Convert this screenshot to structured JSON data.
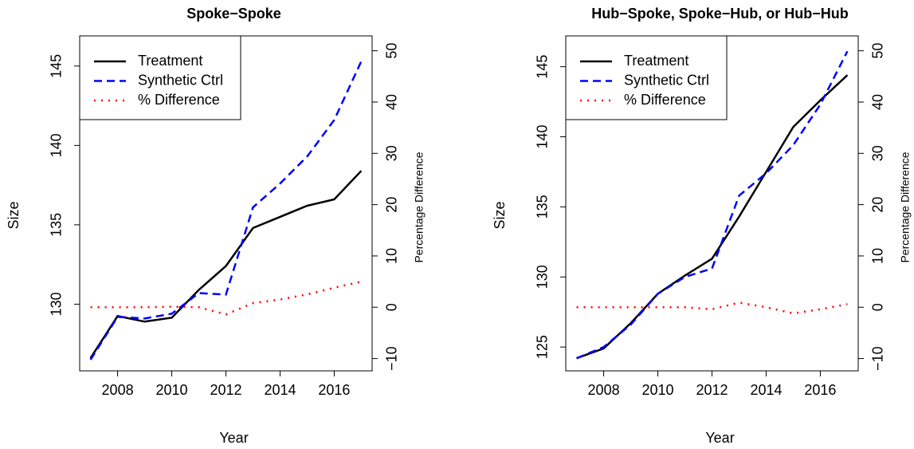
{
  "chart_data": [
    {
      "type": "line",
      "title": "Spoke−Spoke",
      "xlabel": "Year",
      "ylabel": "Size",
      "y2label": "Percentage Difference",
      "x": [
        2007,
        2008,
        2009,
        2010,
        2011,
        2012,
        2013,
        2014,
        2015,
        2016,
        2017
      ],
      "series": [
        {
          "name": "Treatment",
          "color": "#000000",
          "linestyle": "solid",
          "values": [
            126.6,
            129.25,
            128.9,
            129.15,
            130.9,
            132.4,
            134.8,
            135.5,
            136.2,
            136.6,
            138.4
          ]
        },
        {
          "name": "Synthetic Ctrl",
          "color": "#0000ff",
          "linestyle": "dashed",
          "values": [
            126.5,
            129.2,
            129.1,
            129.4,
            130.7,
            130.6,
            136.1,
            137.6,
            139.3,
            141.6,
            145.3
          ]
        },
        {
          "name": "% Difference",
          "color": "#ff0000",
          "linestyle": "dotted",
          "axis": "y2",
          "values": [
            0,
            0,
            0,
            0.1,
            0,
            -1.4,
            0.8,
            1.5,
            2.5,
            3.8,
            5.0
          ]
        }
      ],
      "xlim": [
        2006.6,
        2017.4
      ],
      "ylim": [
        125.8,
        146.9
      ],
      "y2lim": [
        -12.4,
        52.9
      ],
      "xticks": [
        2008,
        2010,
        2012,
        2014,
        2016
      ],
      "yticks": [
        130,
        135,
        140,
        145
      ],
      "y2ticks": [
        {
          "value": -10,
          "label": "−10"
        },
        0,
        10,
        20,
        30,
        40,
        50
      ],
      "legend": "topleft"
    },
    {
      "type": "line",
      "title": "Hub−Spoke, Spoke−Hub, or Hub−Hub",
      "xlabel": "Year",
      "ylabel": "Size",
      "y2label": "Percentage Difference",
      "x": [
        2007,
        2008,
        2009,
        2010,
        2011,
        2012,
        2013,
        2014,
        2015,
        2016,
        2017
      ],
      "series": [
        {
          "name": "Treatment",
          "color": "#000000",
          "linestyle": "solid",
          "values": [
            124.2,
            124.9,
            126.7,
            128.8,
            130.1,
            131.3,
            134.3,
            137.5,
            140.7,
            142.6,
            144.4
          ]
        },
        {
          "name": "Synthetic Ctrl",
          "color": "#0000ff",
          "linestyle": "dashed",
          "values": [
            124.2,
            125.0,
            126.6,
            128.8,
            130.0,
            130.6,
            135.8,
            137.4,
            139.4,
            142.3,
            146.1
          ]
        },
        {
          "name": "% Difference",
          "color": "#ff0000",
          "linestyle": "dotted",
          "axis": "y2",
          "values": [
            0,
            0,
            0,
            0,
            0,
            -0.4,
            0.9,
            0,
            -1.2,
            -0.4,
            0.6
          ]
        }
      ],
      "xlim": [
        2006.6,
        2017.4
      ],
      "ylim": [
        123.3,
        147.2
      ],
      "y2lim": [
        -12.4,
        52.9
      ],
      "xticks": [
        2008,
        2010,
        2012,
        2014,
        2016
      ],
      "yticks": [
        125,
        130,
        135,
        140,
        145
      ],
      "y2ticks": [
        {
          "value": -10,
          "label": "−10"
        },
        0,
        10,
        20,
        30,
        40,
        50
      ],
      "legend": "topleft"
    }
  ]
}
